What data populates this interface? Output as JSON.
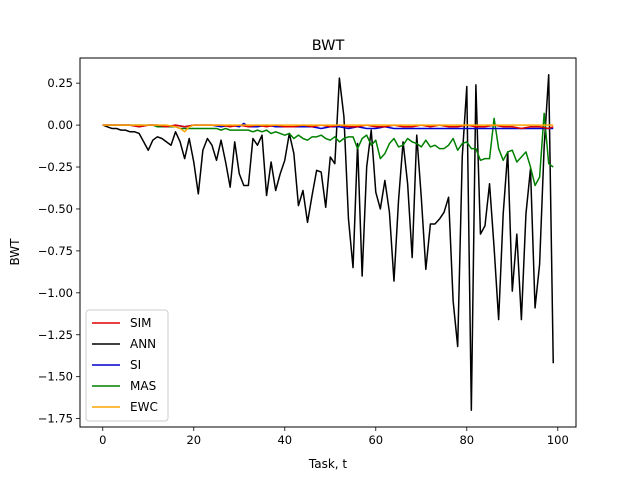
{
  "chart_data": {
    "type": "line",
    "title": "BWT",
    "xlabel": "Task, t",
    "ylabel": "BWT",
    "xlim": [
      -5,
      104
    ],
    "ylim": [
      -1.8,
      0.4
    ],
    "xticks": [
      0,
      20,
      40,
      60,
      80,
      100
    ],
    "yticks": [
      0.25,
      0.0,
      -0.25,
      -0.5,
      -0.75,
      -1.0,
      -1.25,
      -1.5,
      -1.75
    ],
    "ytick_labels": [
      "0.25",
      "0.00",
      "−0.25",
      "−0.50",
      "−0.75",
      "−1.00",
      "−1.25",
      "−1.50",
      "−1.75"
    ],
    "grid": false,
    "legend_position": "lower-left",
    "series": [
      {
        "name": "ANN",
        "color": "#000000",
        "x": [
          0,
          1,
          2,
          3,
          4,
          5,
          6,
          7,
          8,
          9,
          10,
          11,
          12,
          13,
          14,
          15,
          16,
          17,
          18,
          19,
          20,
          21,
          22,
          23,
          24,
          25,
          26,
          27,
          28,
          29,
          30,
          31,
          32,
          33,
          34,
          35,
          36,
          37,
          38,
          39,
          40,
          41,
          42,
          43,
          44,
          45,
          46,
          47,
          48,
          49,
          50,
          51,
          52,
          53,
          54,
          55,
          56,
          57,
          58,
          59,
          60,
          61,
          62,
          63,
          64,
          65,
          66,
          67,
          68,
          69,
          70,
          71,
          72,
          73,
          74,
          75,
          76,
          77,
          78,
          79,
          80,
          81,
          82,
          83,
          84,
          85,
          86,
          87,
          88,
          89,
          90,
          91,
          92,
          93,
          94,
          95,
          96,
          97,
          98,
          99
        ],
        "y": [
          0.0,
          -0.01,
          -0.02,
          -0.02,
          -0.03,
          -0.03,
          -0.04,
          -0.04,
          -0.05,
          -0.1,
          -0.15,
          -0.09,
          -0.07,
          -0.08,
          -0.1,
          -0.12,
          -0.04,
          -0.1,
          -0.2,
          -0.08,
          -0.22,
          -0.41,
          -0.15,
          -0.08,
          -0.12,
          -0.21,
          -0.09,
          -0.22,
          -0.37,
          -0.1,
          -0.29,
          -0.36,
          -0.36,
          -0.08,
          -0.12,
          -0.06,
          -0.42,
          -0.22,
          -0.39,
          -0.29,
          -0.21,
          -0.05,
          -0.17,
          -0.48,
          -0.39,
          -0.58,
          -0.42,
          -0.27,
          -0.28,
          -0.49,
          -0.19,
          -0.23,
          0.28,
          0.05,
          -0.56,
          -0.85,
          -0.11,
          -0.9,
          -0.25,
          -0.03,
          -0.4,
          -0.5,
          -0.33,
          -0.52,
          -0.93,
          -0.45,
          -0.1,
          -0.35,
          -0.79,
          -0.06,
          -0.43,
          -0.86,
          -0.59,
          -0.59,
          -0.56,
          -0.52,
          -0.43,
          -1.05,
          -1.32,
          -0.19,
          0.23,
          -1.7,
          0.24,
          -0.65,
          -0.6,
          -0.35,
          -0.73,
          -1.16,
          -0.53,
          -0.16,
          -0.99,
          -0.65,
          -1.16,
          -0.53,
          -0.26,
          -1.09,
          -0.83,
          -0.13,
          0.3,
          -1.42
        ]
      },
      {
        "name": "MAS",
        "color": "#008000",
        "x": [
          0,
          1,
          2,
          3,
          4,
          5,
          6,
          7,
          8,
          9,
          10,
          11,
          12,
          13,
          14,
          15,
          16,
          17,
          18,
          19,
          20,
          21,
          22,
          23,
          24,
          25,
          26,
          27,
          28,
          29,
          30,
          31,
          32,
          33,
          34,
          35,
          36,
          37,
          38,
          39,
          40,
          41,
          42,
          43,
          44,
          45,
          46,
          47,
          48,
          49,
          50,
          51,
          52,
          53,
          54,
          55,
          56,
          57,
          58,
          59,
          60,
          61,
          62,
          63,
          64,
          65,
          66,
          67,
          68,
          69,
          70,
          71,
          72,
          73,
          74,
          75,
          76,
          77,
          78,
          79,
          80,
          81,
          82,
          83,
          84,
          85,
          86,
          87,
          88,
          89,
          90,
          91,
          92,
          93,
          94,
          95,
          96,
          97,
          98,
          99
        ],
        "y": [
          0.0,
          0.0,
          0.0,
          0.0,
          0.0,
          0.0,
          0.0,
          0.0,
          0.0,
          0.0,
          0.0,
          0.0,
          -0.01,
          -0.01,
          -0.01,
          -0.01,
          -0.01,
          -0.02,
          -0.02,
          -0.02,
          -0.02,
          -0.02,
          -0.02,
          -0.02,
          -0.02,
          -0.02,
          -0.03,
          -0.02,
          -0.03,
          -0.03,
          -0.03,
          -0.03,
          -0.03,
          -0.04,
          -0.03,
          -0.04,
          -0.03,
          -0.05,
          -0.04,
          -0.05,
          -0.06,
          -0.05,
          -0.08,
          -0.06,
          -0.08,
          -0.09,
          -0.07,
          -0.07,
          -0.06,
          -0.08,
          -0.09,
          -0.07,
          -0.1,
          -0.08,
          -0.07,
          -0.07,
          -0.14,
          -0.08,
          -0.06,
          -0.12,
          -0.09,
          -0.2,
          -0.17,
          -0.11,
          -0.08,
          -0.13,
          -0.12,
          -0.08,
          -0.1,
          -0.11,
          -0.13,
          -0.09,
          -0.13,
          -0.12,
          -0.14,
          -0.14,
          -0.12,
          -0.08,
          -0.15,
          -0.11,
          -0.1,
          -0.14,
          -0.14,
          -0.21,
          -0.2,
          -0.2,
          0.04,
          -0.14,
          -0.21,
          -0.16,
          -0.15,
          -0.22,
          -0.19,
          -0.16,
          -0.25,
          -0.36,
          -0.31,
          0.07,
          -0.23,
          -0.25
        ]
      },
      {
        "name": "SI",
        "color": "#0000cc",
        "x": [
          0,
          2,
          4,
          6,
          8,
          10,
          12,
          14,
          16,
          18,
          20,
          22,
          24,
          26,
          28,
          30,
          31,
          32,
          34,
          36,
          38,
          40,
          42,
          44,
          46,
          48,
          50,
          52,
          54,
          56,
          58,
          60,
          62,
          64,
          66,
          68,
          70,
          72,
          74,
          76,
          78,
          80,
          82,
          84,
          86,
          88,
          90,
          92,
          94,
          96,
          98,
          99
        ],
        "y": [
          0.0,
          0.0,
          0.0,
          0.0,
          -0.01,
          0.0,
          0.0,
          -0.01,
          0.0,
          -0.01,
          0.0,
          0.0,
          0.0,
          -0.01,
          0.0,
          -0.01,
          0.01,
          -0.01,
          -0.01,
          0.0,
          -0.01,
          -0.01,
          -0.01,
          -0.01,
          -0.01,
          -0.02,
          -0.01,
          -0.01,
          -0.02,
          -0.01,
          -0.02,
          -0.02,
          -0.01,
          -0.02,
          -0.02,
          -0.02,
          -0.02,
          -0.02,
          -0.02,
          -0.02,
          -0.02,
          -0.02,
          -0.02,
          -0.02,
          -0.02,
          -0.02,
          -0.02,
          -0.02,
          -0.02,
          -0.02,
          -0.02,
          -0.02
        ]
      },
      {
        "name": "SIM",
        "color": "#dd0000",
        "x": [
          0,
          2,
          4,
          6,
          8,
          10,
          12,
          14,
          16,
          18,
          20,
          22,
          24,
          26,
          28,
          30,
          32,
          34,
          36,
          38,
          40,
          42,
          44,
          46,
          48,
          50,
          52,
          54,
          56,
          58,
          60,
          62,
          64,
          66,
          68,
          70,
          72,
          74,
          76,
          78,
          80,
          82,
          84,
          86,
          88,
          90,
          92,
          94,
          96,
          98,
          99
        ],
        "y": [
          0.0,
          0.0,
          0.0,
          0.0,
          -0.01,
          0.0,
          0.0,
          -0.01,
          0.0,
          -0.01,
          0.0,
          0.0,
          0.0,
          0.0,
          -0.01,
          0.0,
          -0.01,
          0.0,
          -0.01,
          0.0,
          -0.01,
          -0.01,
          0.0,
          -0.01,
          0.0,
          -0.01,
          0.0,
          -0.01,
          -0.01,
          0.0,
          -0.01,
          -0.01,
          0.0,
          -0.01,
          -0.01,
          0.0,
          -0.01,
          0.0,
          -0.01,
          -0.01,
          0.0,
          -0.01,
          -0.01,
          0.0,
          -0.01,
          -0.01,
          -0.02,
          -0.01,
          -0.01,
          -0.02,
          -0.01
        ]
      },
      {
        "name": "EWC",
        "color": "#ffa500",
        "x": [
          0,
          2,
          4,
          6,
          8,
          10,
          12,
          14,
          16,
          17,
          18,
          19,
          20,
          22,
          24,
          26,
          28,
          30,
          32,
          34,
          36,
          38,
          40,
          42,
          44,
          46,
          48,
          50,
          52,
          54,
          56,
          58,
          60,
          62,
          64,
          66,
          68,
          70,
          72,
          74,
          76,
          78,
          80,
          82,
          84,
          86,
          88,
          90,
          92,
          94,
          96,
          98,
          99
        ],
        "y": [
          0.0,
          0.0,
          0.0,
          0.0,
          0.0,
          0.0,
          0.0,
          0.0,
          -0.01,
          -0.02,
          -0.04,
          -0.01,
          0.0,
          0.0,
          0.0,
          0.0,
          0.0,
          0.0,
          0.0,
          0.0,
          0.0,
          0.0,
          0.0,
          0.0,
          0.0,
          0.0,
          0.0,
          0.0,
          0.0,
          0.0,
          0.0,
          0.0,
          0.0,
          0.0,
          0.0,
          0.0,
          0.0,
          0.0,
          0.0,
          0.0,
          0.0,
          0.0,
          0.0,
          0.0,
          0.0,
          0.0,
          0.0,
          0.0,
          0.0,
          0.0,
          0.0,
          0.0,
          0.0
        ]
      }
    ],
    "legend_order": [
      "SIM",
      "ANN",
      "SI",
      "MAS",
      "EWC"
    ]
  }
}
